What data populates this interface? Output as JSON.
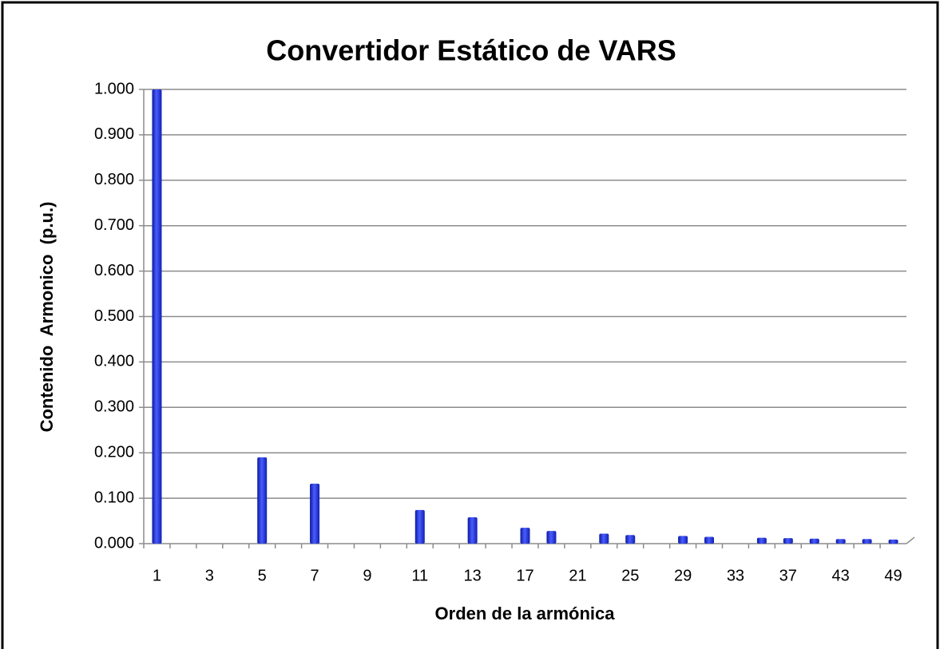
{
  "chart_data": {
    "type": "bar",
    "title": "Convertidor Estático de VARS",
    "xlabel": "Orden de la armónica",
    "ylabel": "Contenido  Armonico  (p.u.)",
    "categories": [
      "1",
      null,
      "3",
      null,
      "5",
      null,
      "7",
      null,
      "9",
      null,
      "11",
      null,
      "13",
      null,
      "17",
      null,
      "21",
      null,
      "25",
      null,
      "29",
      null,
      "33",
      null,
      "37",
      null,
      "43",
      null,
      "49"
    ],
    "values": [
      1.0,
      0,
      0,
      0,
      0.19,
      0,
      0.132,
      0,
      0,
      0,
      0.074,
      0,
      0.058,
      0,
      0.035,
      0.028,
      0,
      0.022,
      0.019,
      0,
      0.017,
      0.015,
      0,
      0.013,
      0.012,
      0.011,
      0.01,
      0.01,
      0.009
    ],
    "color": "#2233dd",
    "ylim": [
      0,
      1
    ],
    "yticks": [
      {
        "value": 0,
        "label": "0.000"
      },
      {
        "value": 0.1,
        "label": "0.100"
      },
      {
        "value": 0.2,
        "label": "0.200"
      },
      {
        "value": 0.3,
        "label": "0.300"
      },
      {
        "value": 0.4,
        "label": "0.400"
      },
      {
        "value": 0.5,
        "label": "0.500"
      },
      {
        "value": 0.6,
        "label": "0.600"
      },
      {
        "value": 0.7,
        "label": "0.700"
      },
      {
        "value": 0.8,
        "label": "0.800"
      },
      {
        "value": 0.9,
        "label": "0.900"
      },
      {
        "value": 1,
        "label": "1.000"
      }
    ],
    "grid": true
  }
}
